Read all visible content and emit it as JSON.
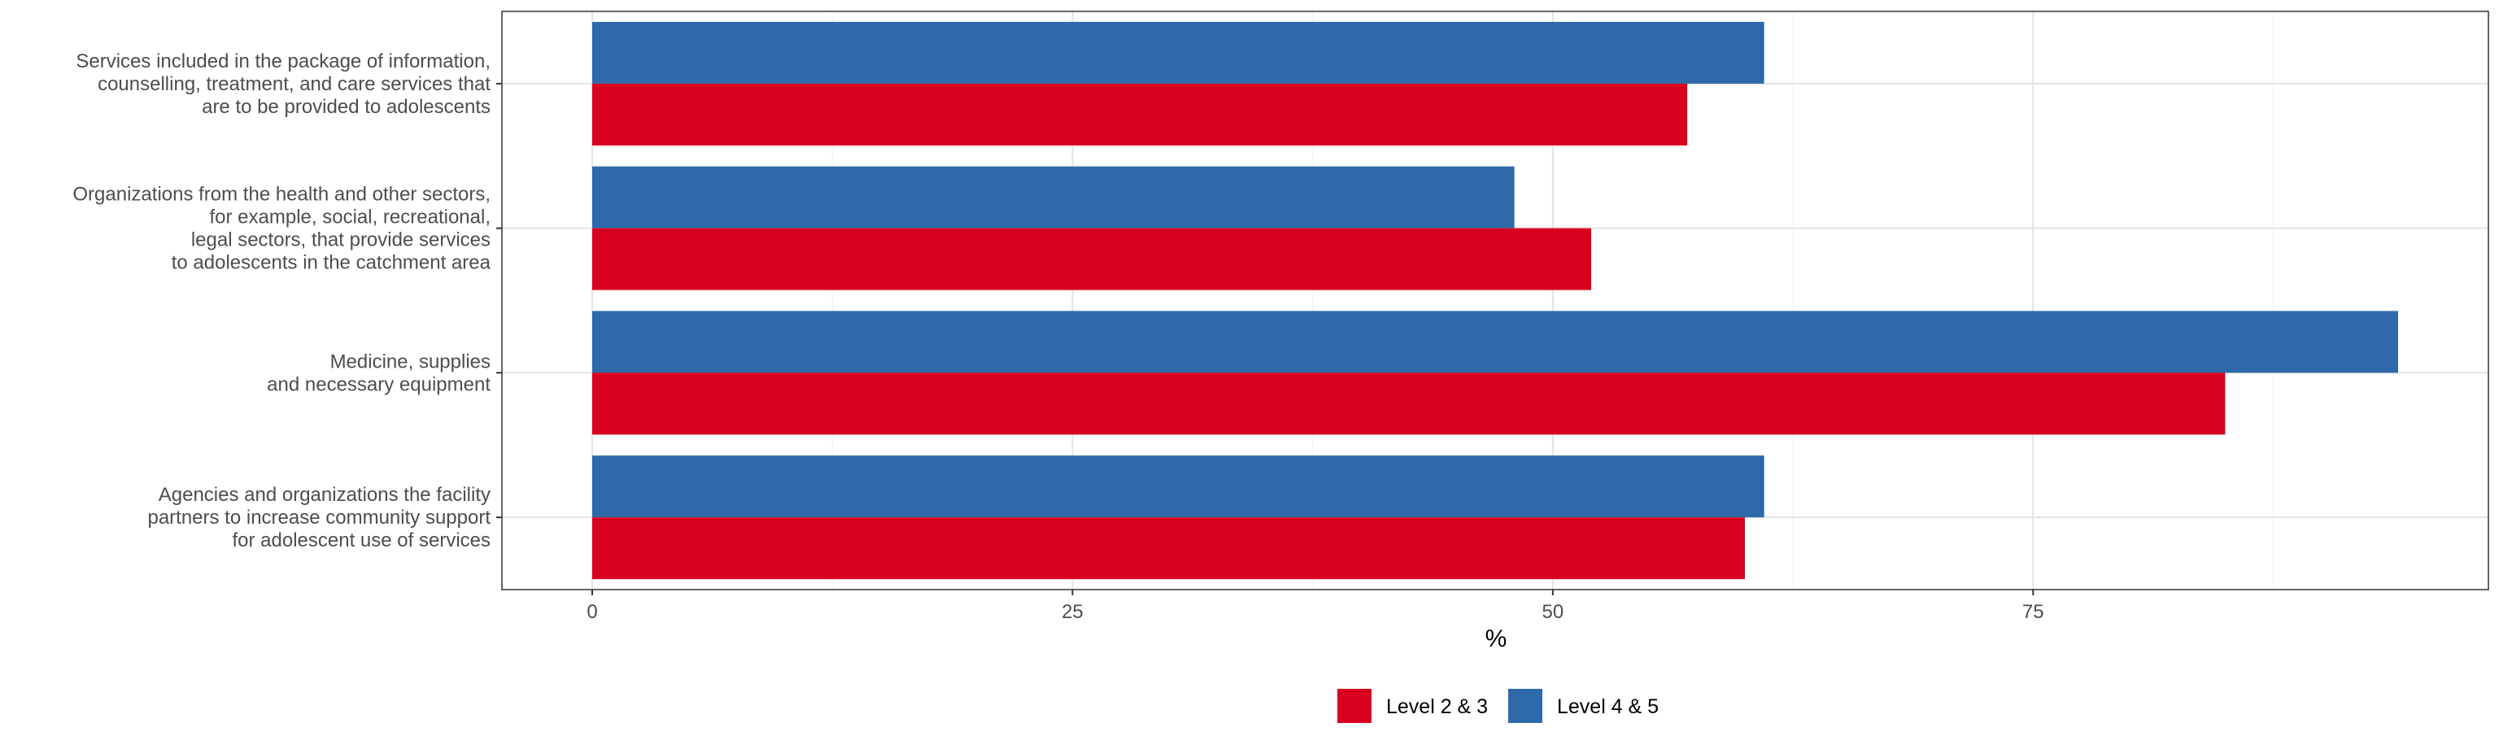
{
  "chart_data": {
    "type": "bar",
    "orientation": "horizontal",
    "categories": [
      [
        "Services included in the package of information,",
        "counselling, treatment, and care services that",
        "are to be provided to adolescents"
      ],
      [
        "Organizations from the health and other sectors,",
        "for example, social, recreational,",
        "legal sectors, that provide services",
        "to adolescents in the catchment area"
      ],
      [
        "Medicine, supplies",
        "and necessary equipment"
      ],
      [
        "Agencies and organizations the facility",
        "partners to increase community support",
        "for adolescent use of services"
      ]
    ],
    "series": [
      {
        "name": "Level 4 & 5",
        "color": "#2e6aa9",
        "values": [
          61,
          48,
          94,
          61
        ]
      },
      {
        "name": "Level 2 & 3",
        "color": "#d7001e",
        "values": [
          57,
          52,
          85,
          60
        ]
      }
    ],
    "xlabel": "%",
    "ylabel": "",
    "xlim": [
      -4.7,
      98.7
    ],
    "xticks": [
      0,
      25,
      50,
      75
    ],
    "grid": true,
    "legend_position": "bottom",
    "legend_order": [
      "Level 2 & 3",
      "Level 4 & 5"
    ]
  }
}
